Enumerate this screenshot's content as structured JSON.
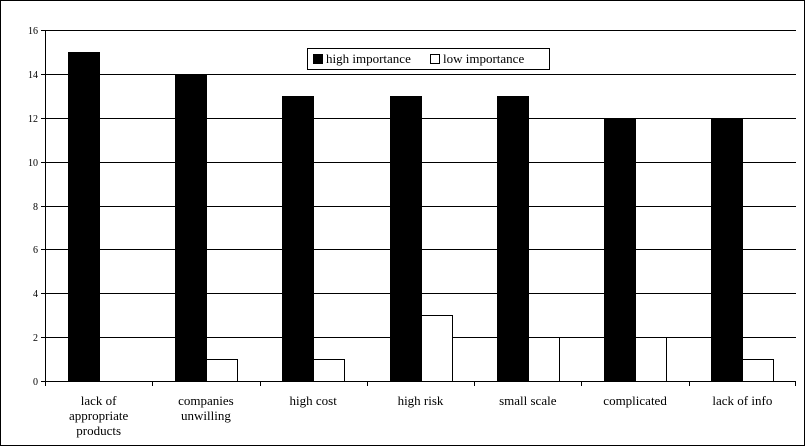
{
  "chart_data": {
    "type": "bar",
    "title": "",
    "xlabel": "",
    "ylabel": "",
    "ylim": [
      0,
      16
    ],
    "yticks": [
      0,
      2,
      4,
      6,
      8,
      10,
      12,
      14,
      16
    ],
    "grid": "horizontal",
    "legend_position": "top-center",
    "categories": [
      [
        "lack of",
        "appropriate",
        "products"
      ],
      [
        "companies",
        "unwilling"
      ],
      [
        "high cost"
      ],
      [
        "high risk"
      ],
      [
        "small scale"
      ],
      [
        "complicated"
      ],
      [
        "lack of info"
      ]
    ],
    "series": [
      {
        "name": "high importance",
        "color": "#000000",
        "values": [
          15,
          14,
          13,
          13,
          13,
          12,
          12
        ]
      },
      {
        "name": "low importance",
        "color": "#ffffff",
        "values": [
          0,
          1,
          1,
          3,
          2,
          2,
          1
        ]
      }
    ]
  }
}
